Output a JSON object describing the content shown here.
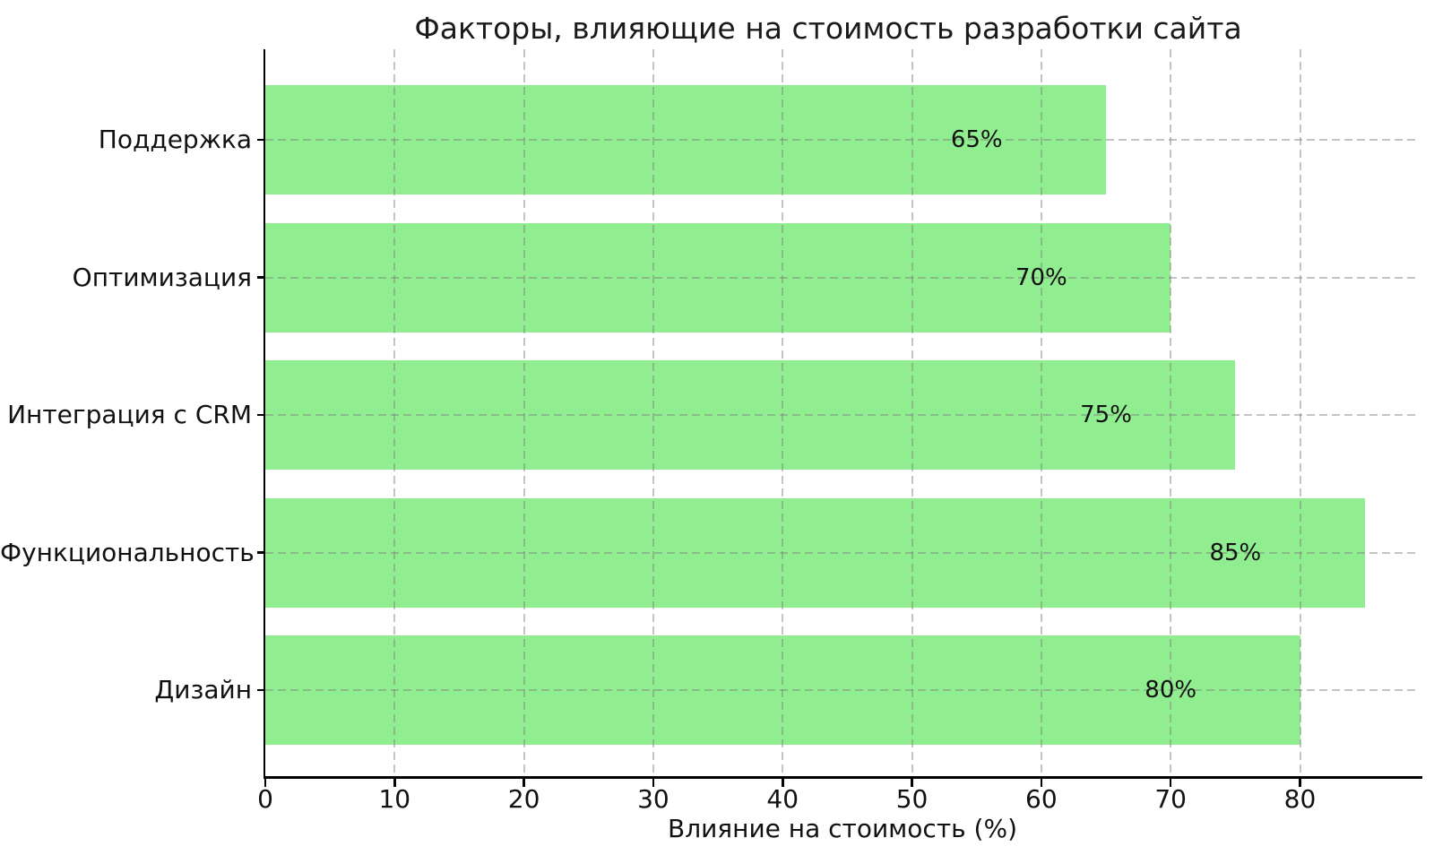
{
  "chart_data": {
    "type": "bar",
    "orientation": "horizontal",
    "title": "Факторы, влияющие на стоимость разработки сайта",
    "xlabel": "Влияние на стоимость (%)",
    "ylabel": "",
    "categories": [
      "Поддержка",
      "Оптимизация",
      "Интеграция с CRM",
      "Функциональность",
      "Дизайн"
    ],
    "values": [
      65,
      70,
      75,
      85,
      80
    ],
    "bar_labels": [
      "65%",
      "70%",
      "75%",
      "85%",
      "80%"
    ],
    "x_ticks": [
      0,
      10,
      20,
      30,
      40,
      50,
      60,
      70,
      80
    ],
    "xlim": [
      0,
      89.25
    ],
    "grid": "dashed",
    "legend": "none",
    "bar_color": "#90EE90",
    "grid_color": "#c8c8c8",
    "axis_color": "#000000",
    "text_color": "#111111"
  }
}
